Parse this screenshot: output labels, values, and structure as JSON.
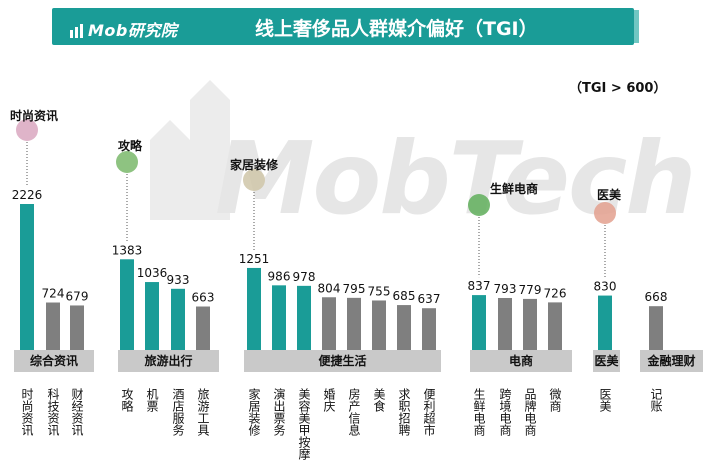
{
  "header": {
    "logo_text": "Mob研究院",
    "title": "线上奢侈品人群媒介偏好（TGI）"
  },
  "note": "（TGI > 600）",
  "watermark": "MobTech",
  "colors": {
    "teal": "#1a9c97",
    "gray": "#7f7f7f",
    "group_bg": "#c9c9c9"
  },
  "chart_data": {
    "type": "bar",
    "title": "线上奢侈品人群媒介偏好（TGI）",
    "categories": [
      "时尚资讯",
      "科技资讯",
      "财经资讯",
      "攻略",
      "机票",
      "酒店服务",
      "旅游工具",
      "家居装修",
      "演出票务",
      "美容美甲按摩",
      "婚庆",
      "房产信息",
      "美食",
      "求职招聘",
      "便利超市",
      "生鲜电商",
      "跨境电商",
      "品牌电商",
      "微商",
      "医美",
      "记账"
    ],
    "values": [
      2226,
      724,
      679,
      1383,
      1036,
      933,
      663,
      1251,
      986,
      978,
      804,
      795,
      755,
      685,
      637,
      837,
      793,
      779,
      726,
      830,
      668
    ],
    "highlight": [
      "teal",
      "gray",
      "gray",
      "teal",
      "teal",
      "teal",
      "gray",
      "teal",
      "teal",
      "teal",
      "gray",
      "gray",
      "gray",
      "gray",
      "gray",
      "teal",
      "gray",
      "gray",
      "gray",
      "teal",
      "gray"
    ],
    "groups": [
      {
        "name": "综合资讯",
        "count": 3
      },
      {
        "name": "旅游出行",
        "count": 4
      },
      {
        "name": "便捷生活",
        "count": 8
      },
      {
        "name": "电商",
        "count": 4
      },
      {
        "name": "医美",
        "count": 1
      },
      {
        "name": "金融理财",
        "count": 1
      }
    ],
    "annotations": [
      "时尚资讯",
      "攻略",
      "家居装修",
      "生鲜电商",
      "医美"
    ]
  }
}
